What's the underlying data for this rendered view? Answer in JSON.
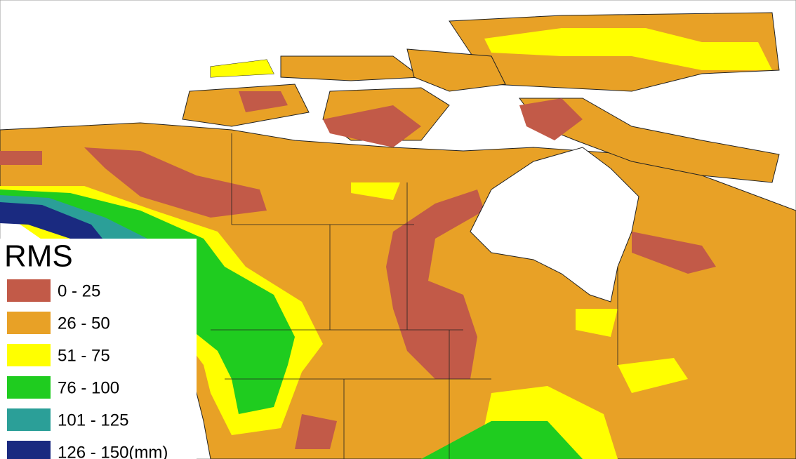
{
  "legend": {
    "title": "RMS",
    "items": [
      {
        "label": "0 - 25",
        "color": "#c25a48"
      },
      {
        "label": "26 - 50",
        "color": "#e8a126"
      },
      {
        "label": "51 - 75",
        "color": "#ffff00"
      },
      {
        "label": "76 - 100",
        "color": "#1fcc1f"
      },
      {
        "label": "101 - 125",
        "color": "#2b9f98"
      },
      {
        "label": "126 - 150(mm)",
        "color": "#1a2a80"
      }
    ]
  }
}
